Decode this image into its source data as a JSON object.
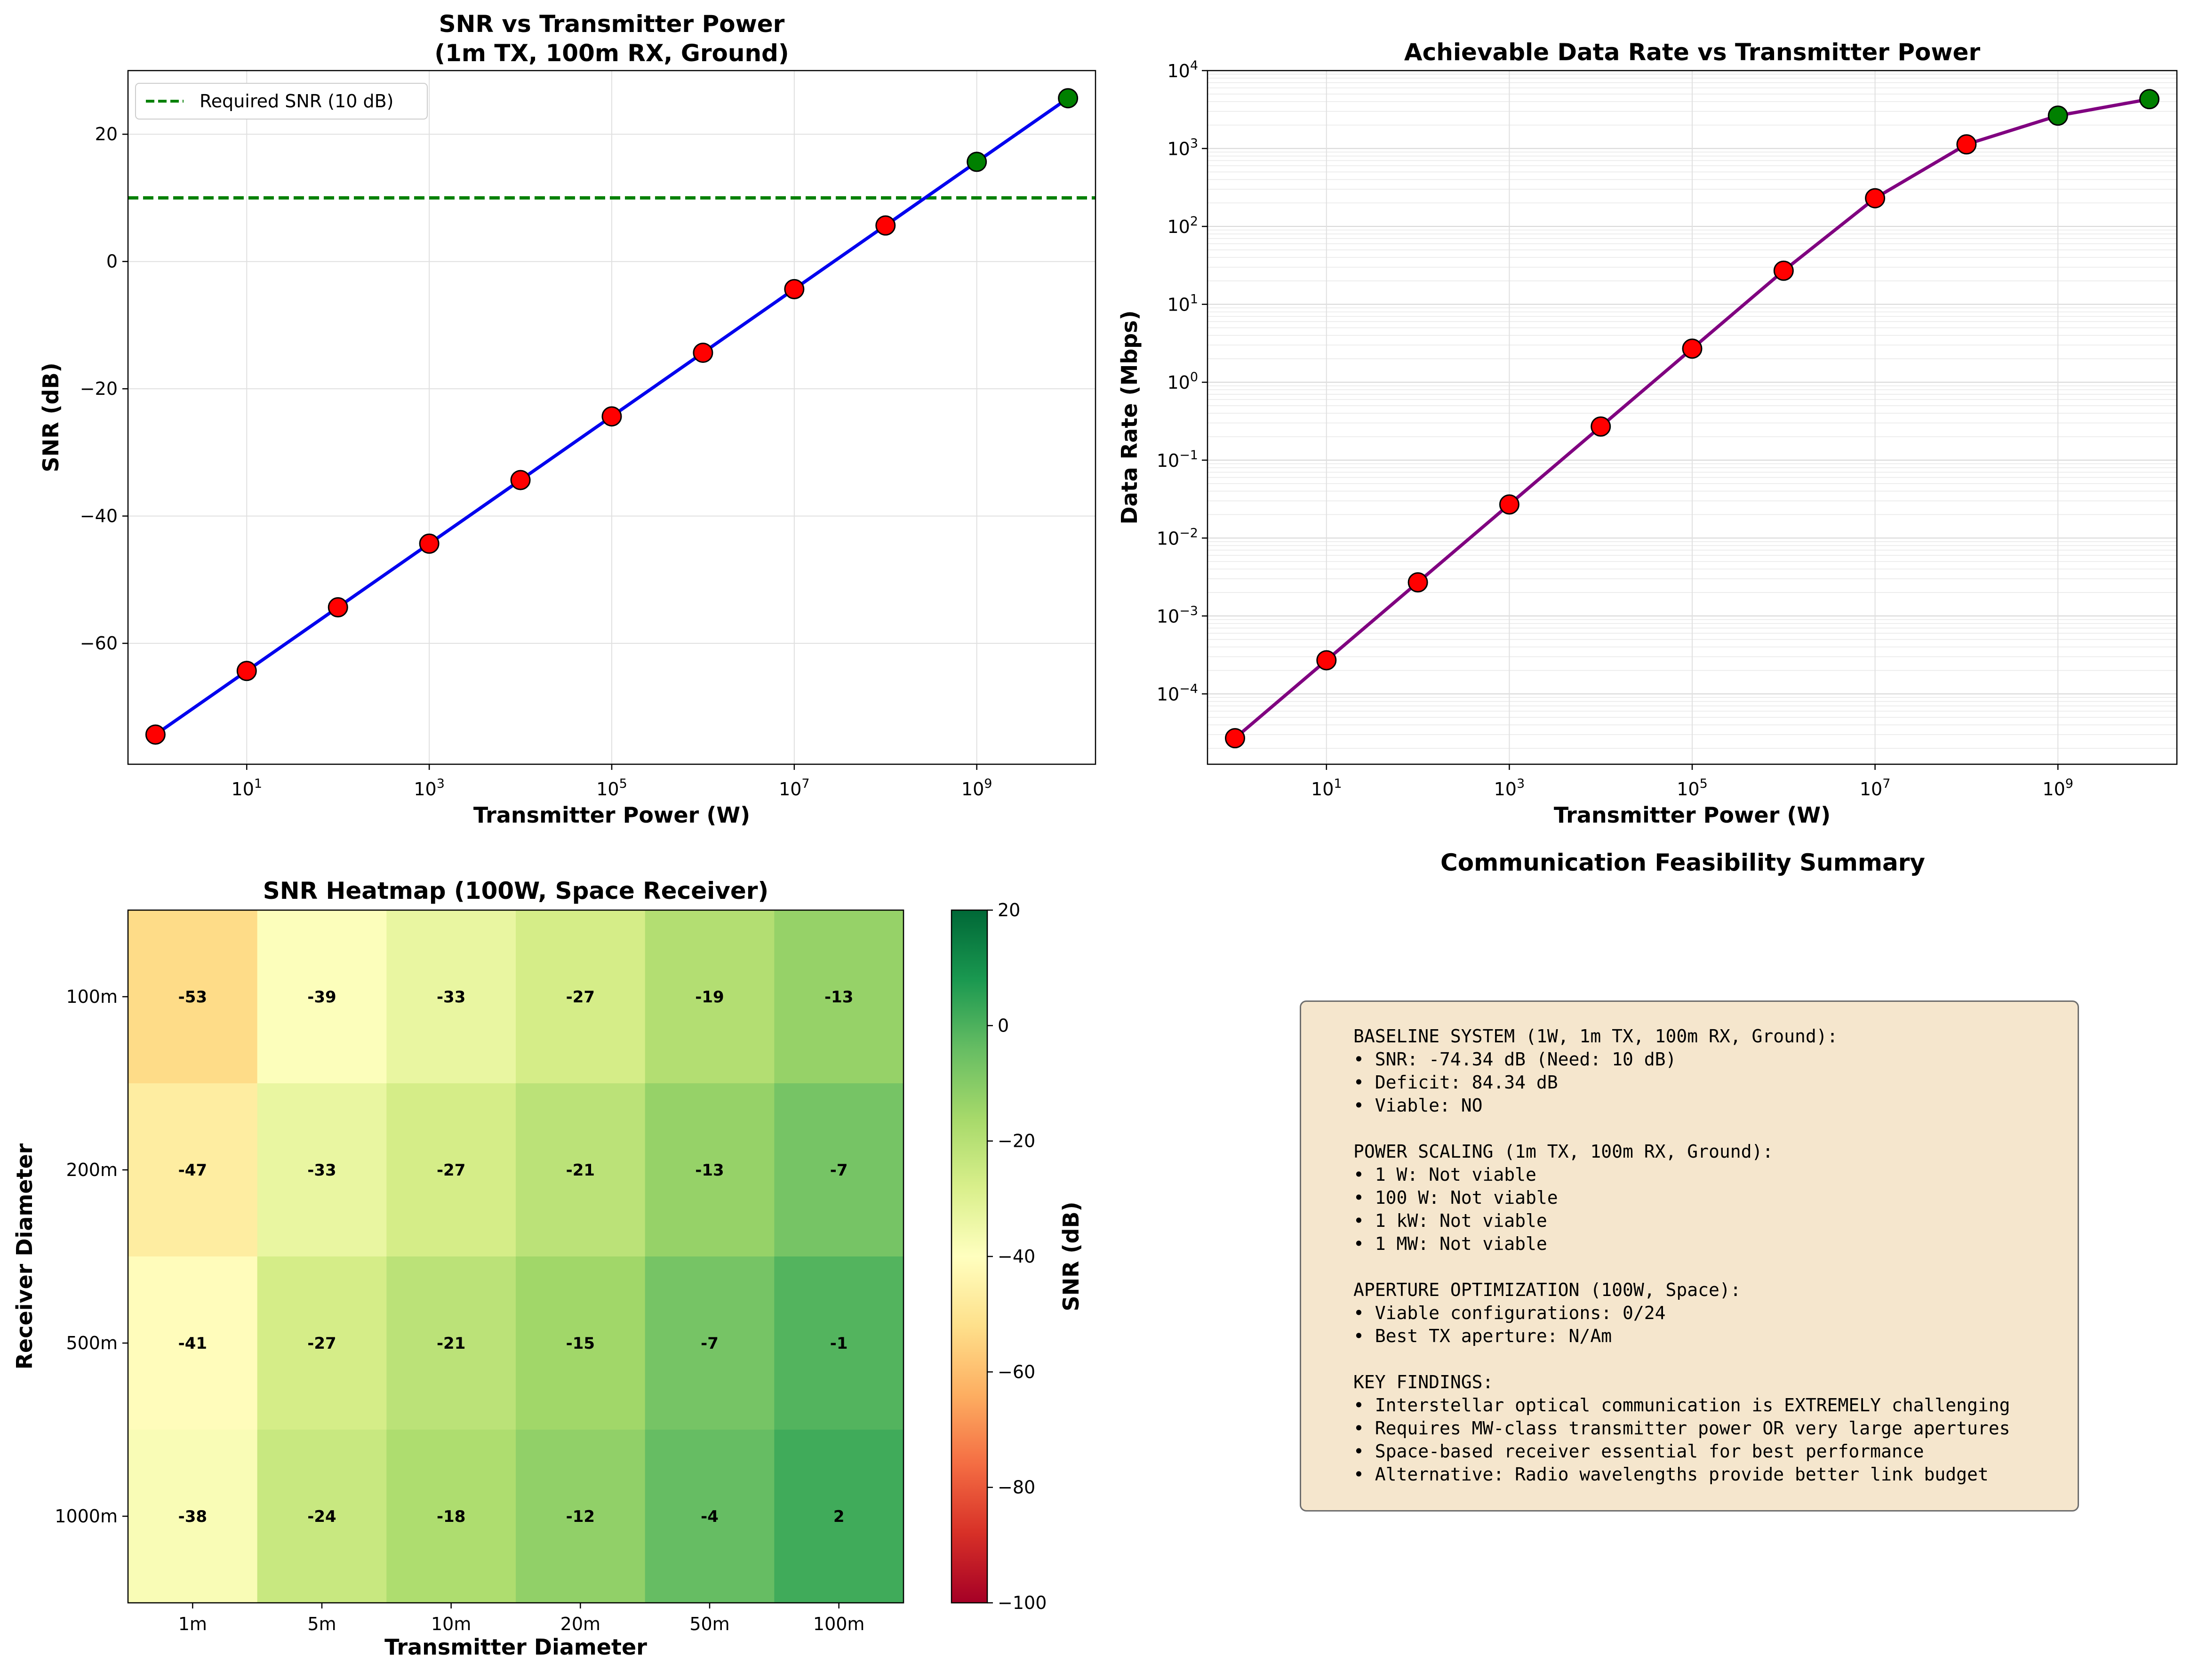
{
  "chart_data": [
    {
      "type": "line",
      "title": "SNR vs Transmitter Power\n(1m TX, 100m RX, Ground)",
      "xlabel": "Transmitter Power (W)",
      "ylabel": "SNR (dB)",
      "xscale": "log",
      "xlim": [
        0.5,
        20000000000
      ],
      "ylim": [
        -79,
        30
      ],
      "x": [
        1,
        10,
        100,
        1000,
        10000,
        100000,
        1000000,
        10000000,
        100000000,
        1000000000,
        10000000000
      ],
      "y": [
        -74.34,
        -64.34,
        -54.34,
        -44.34,
        -34.34,
        -24.34,
        -14.34,
        -4.34,
        5.66,
        15.66,
        25.66
      ],
      "point_viable": [
        false,
        false,
        false,
        false,
        false,
        false,
        false,
        false,
        false,
        true,
        true
      ],
      "xticks": [
        {
          "exp": "1",
          "value": 10
        },
        {
          "exp": "3",
          "value": 1000
        },
        {
          "exp": "5",
          "value": 100000
        },
        {
          "exp": "7",
          "value": 10000000
        },
        {
          "exp": "9",
          "value": 1000000000
        }
      ],
      "yticks": [
        20,
        0,
        -20,
        -40,
        -60
      ],
      "reference_line": {
        "y": 10,
        "label": "Required SNR (10 dB)",
        "color": "#008000"
      },
      "line_color": "#0000ee",
      "legend_position": "top-left",
      "grid": true
    },
    {
      "type": "line",
      "title": "Achievable Data Rate vs Transmitter Power",
      "xlabel": "Transmitter Power (W)",
      "ylabel": "Data Rate (Mbps)",
      "xscale": "log",
      "yscale": "log",
      "xlim": [
        0.5,
        20000000000
      ],
      "ylim": [
        1.25e-05,
        10000
      ],
      "x": [
        1,
        10,
        100,
        1000,
        10000,
        100000,
        1000000,
        10000000,
        100000000,
        1000000000,
        10000000000
      ],
      "y": [
        2.7e-05,
        0.00027,
        0.0027,
        0.027,
        0.27,
        2.7,
        27,
        230,
        1130,
        2640,
        4300
      ],
      "point_viable": [
        false,
        false,
        false,
        false,
        false,
        false,
        false,
        false,
        false,
        true,
        true
      ],
      "xticks": [
        {
          "exp": "1",
          "value": 10
        },
        {
          "exp": "3",
          "value": 1000
        },
        {
          "exp": "5",
          "value": 100000
        },
        {
          "exp": "7",
          "value": 10000000
        },
        {
          "exp": "9",
          "value": 1000000000
        }
      ],
      "yticks": [
        {
          "exp": "4",
          "value": 10000
        },
        {
          "exp": "3",
          "value": 1000
        },
        {
          "exp": "2",
          "value": 100
        },
        {
          "exp": "1",
          "value": 10
        },
        {
          "exp": "0",
          "value": 1
        },
        {
          "exp": "−1",
          "value": 0.1
        },
        {
          "exp": "−2",
          "value": 0.01
        },
        {
          "exp": "−3",
          "value": 0.001
        },
        {
          "exp": "−4",
          "value": 0.0001
        }
      ],
      "line_color": "#800080",
      "grid": true
    },
    {
      "type": "heatmap",
      "title": "SNR Heatmap (100W, Space Receiver)",
      "xlabel": "Transmitter Diameter",
      "ylabel": "Receiver Diameter",
      "x_categories": [
        "1m",
        "5m",
        "10m",
        "20m",
        "50m",
        "100m"
      ],
      "y_categories": [
        "100m",
        "200m",
        "500m",
        "1000m"
      ],
      "values": [
        [
          -53,
          -39,
          -33,
          -27,
          -19,
          -13
        ],
        [
          -47,
          -33,
          -27,
          -21,
          -13,
          -7
        ],
        [
          -41,
          -27,
          -21,
          -15,
          -7,
          -1
        ],
        [
          -38,
          -24,
          -18,
          -12,
          -4,
          2
        ]
      ],
      "labels": [
        [
          "-53",
          "-39",
          "-33",
          "-27",
          "-19",
          "-13"
        ],
        [
          "-47",
          "-33",
          "-27",
          "-21",
          "-13",
          "-7"
        ],
        [
          "-41",
          "-27",
          "-21",
          "-15",
          "-7",
          "-1"
        ],
        [
          "-38",
          "-24",
          "-18",
          "-12",
          "-4",
          "2"
        ]
      ],
      "colormap": "RdYlGn",
      "colorbar": {
        "label": "SNR (dB)",
        "min": -100,
        "max": 20,
        "ticks": [
          20,
          0,
          -20,
          -40,
          -60,
          -80,
          -100
        ],
        "tick_labels": [
          "20",
          "0",
          "−20",
          "−40",
          "−60",
          "−80",
          "−100"
        ]
      }
    }
  ],
  "summary": {
    "title": "Communication Feasibility Summary",
    "lines": [
      "BASELINE SYSTEM (1W, 1m TX, 100m RX, Ground):",
      "• SNR: -74.34 dB (Need: 10 dB)",
      "• Deficit: 84.34 dB",
      "• Viable: NO",
      "",
      "POWER SCALING (1m TX, 100m RX, Ground):",
      "• 1 W: Not viable",
      "• 100 W: Not viable",
      "• 1 kW: Not viable",
      "• 1 MW: Not viable",
      "",
      "APERTURE OPTIMIZATION (100W, Space):",
      "• Viable configurations: 0/24",
      "• Best TX aperture: N/Am",
      "",
      "KEY FINDINGS:",
      "• Interstellar optical communication is EXTREMELY challenging",
      "• Requires MW-class transmitter power OR very large apertures",
      "• Space-based receiver essential for best performance",
      "• Alternative: Radio wavelengths provide better link budget"
    ]
  },
  "colors": {
    "viable_marker": "#008000",
    "nonviable_marker": "#ff0000",
    "summary_box": "#f5e6cd"
  }
}
